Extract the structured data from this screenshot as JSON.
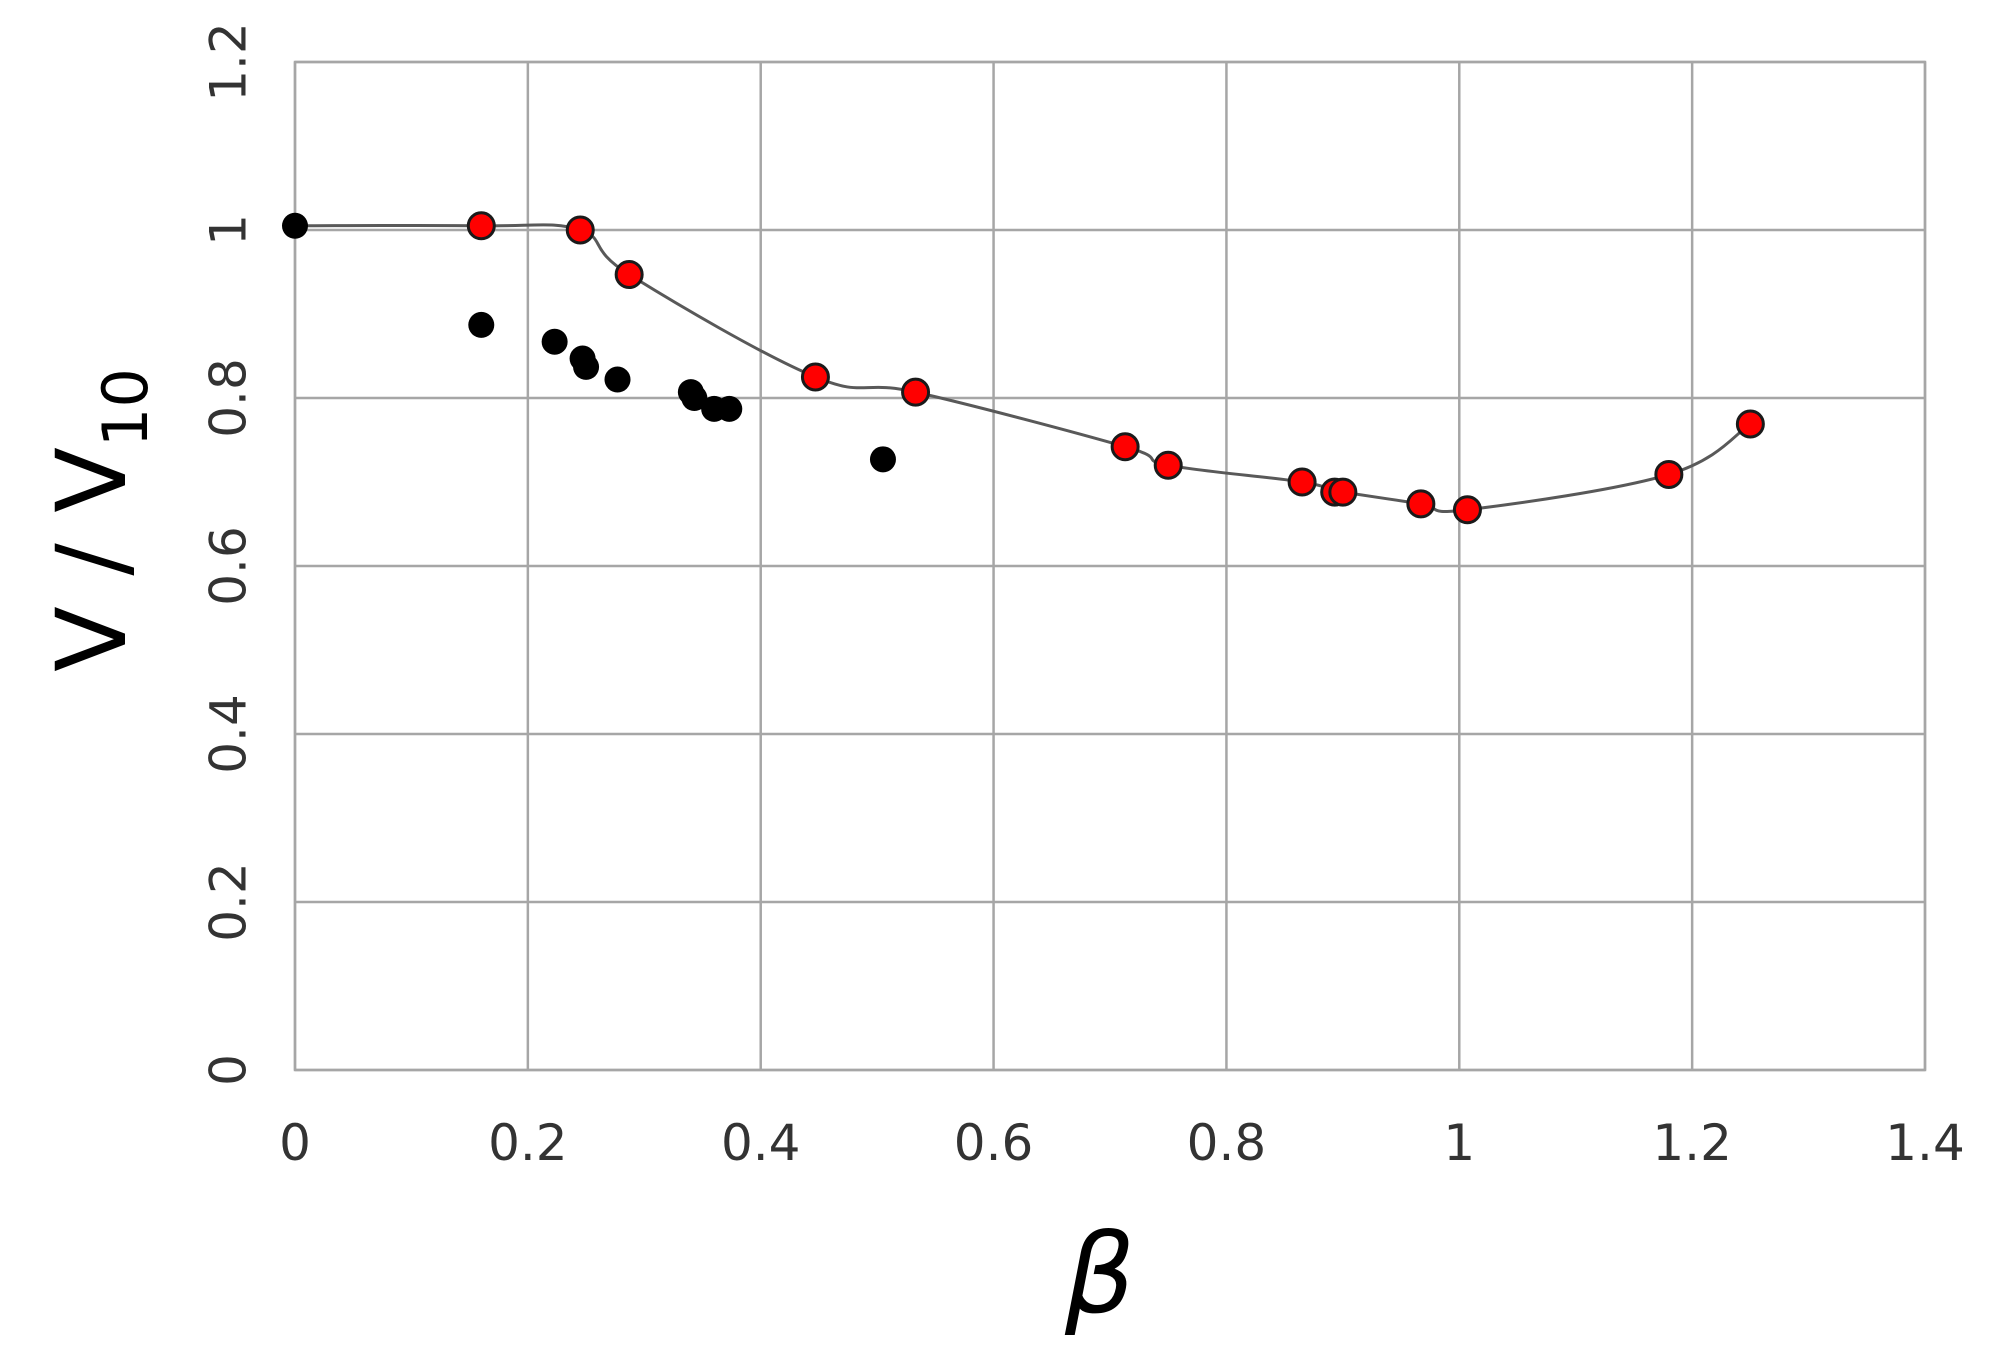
{
  "chart_data": {
    "type": "scatter",
    "xlabel": "β",
    "ylabel": {
      "main": "V / V",
      "sub": "10"
    },
    "xlim": [
      0,
      1.4
    ],
    "ylim": [
      0,
      1.2
    ],
    "x_ticks": [
      "0",
      "0.2",
      "0.4",
      "0.6",
      "0.8",
      "1",
      "1.2",
      "1.4"
    ],
    "y_ticks": [
      "0",
      "0.2",
      "0.4",
      "0.6",
      "0.8",
      "1",
      "1.2"
    ],
    "grid": true,
    "legend": "none",
    "colors": {
      "red_series": "#ff0000",
      "black_series": "#000000",
      "line": "#595959",
      "grid": "#a6a6a6"
    },
    "series": [
      {
        "marker": "circle-red",
        "connected": true,
        "points": [
          [
            0.0,
            1.005
          ],
          [
            0.16,
            1.005
          ],
          [
            0.245,
            1.0
          ],
          [
            0.287,
            0.947
          ],
          [
            0.447,
            0.825
          ],
          [
            0.533,
            0.807
          ],
          [
            0.713,
            0.742
          ],
          [
            0.75,
            0.72
          ],
          [
            0.865,
            0.7
          ],
          [
            0.893,
            0.688
          ],
          [
            0.9,
            0.688
          ],
          [
            0.967,
            0.674
          ],
          [
            1.007,
            0.667
          ],
          [
            1.18,
            0.709
          ],
          [
            1.25,
            0.769
          ]
        ]
      },
      {
        "marker": "circle-black",
        "connected": false,
        "points": [
          [
            0.0,
            1.005
          ],
          [
            0.16,
            0.887
          ],
          [
            0.223,
            0.867
          ],
          [
            0.247,
            0.847
          ],
          [
            0.25,
            0.837
          ],
          [
            0.277,
            0.822
          ],
          [
            0.34,
            0.807
          ],
          [
            0.343,
            0.8
          ],
          [
            0.36,
            0.787
          ],
          [
            0.373,
            0.787
          ],
          [
            0.505,
            0.727
          ]
        ]
      }
    ]
  }
}
